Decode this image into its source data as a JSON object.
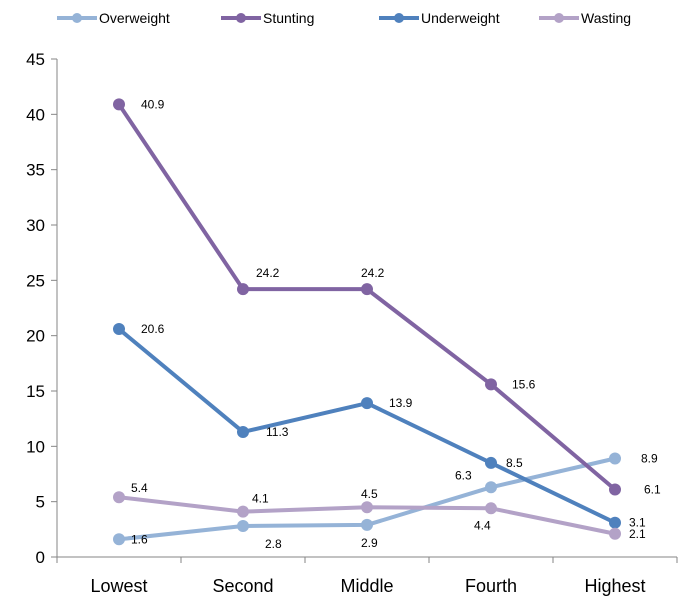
{
  "chart_data": {
    "type": "line",
    "categories": [
      "Lowest",
      "Second",
      "Middle",
      "Fourth",
      "Highest"
    ],
    "ylim": [
      0,
      45
    ],
    "yticks": [
      0,
      5,
      10,
      15,
      20,
      25,
      30,
      35,
      40,
      45
    ],
    "grid": false,
    "legend": "top",
    "series": [
      {
        "name": "Overweight",
        "color": "#95b3d7",
        "values": [
          1.6,
          2.8,
          2.9,
          6.3,
          8.9
        ],
        "labels": [
          "1.6",
          "2.8",
          "2.9",
          "6.3",
          "8.9"
        ]
      },
      {
        "name": "Stunting",
        "color": "#8064a2",
        "values": [
          40.9,
          24.2,
          24.2,
          15.6,
          6.1
        ],
        "labels": [
          "40.9",
          "24.2",
          "24.2",
          "15.6",
          "6.1"
        ]
      },
      {
        "name": "Underweight",
        "color": "#4f81bd",
        "values": [
          20.6,
          11.3,
          13.9,
          8.5,
          3.1
        ],
        "labels": [
          "20.6",
          "11.3",
          "13.9",
          "8.5",
          "3.1"
        ]
      },
      {
        "name": "Wasting",
        "color": "#b3a2c7",
        "values": [
          5.4,
          4.1,
          4.5,
          4.4,
          2.1
        ],
        "labels": [
          "5.4",
          "4.1",
          "4.5",
          "4.4",
          "2.1"
        ]
      }
    ]
  }
}
